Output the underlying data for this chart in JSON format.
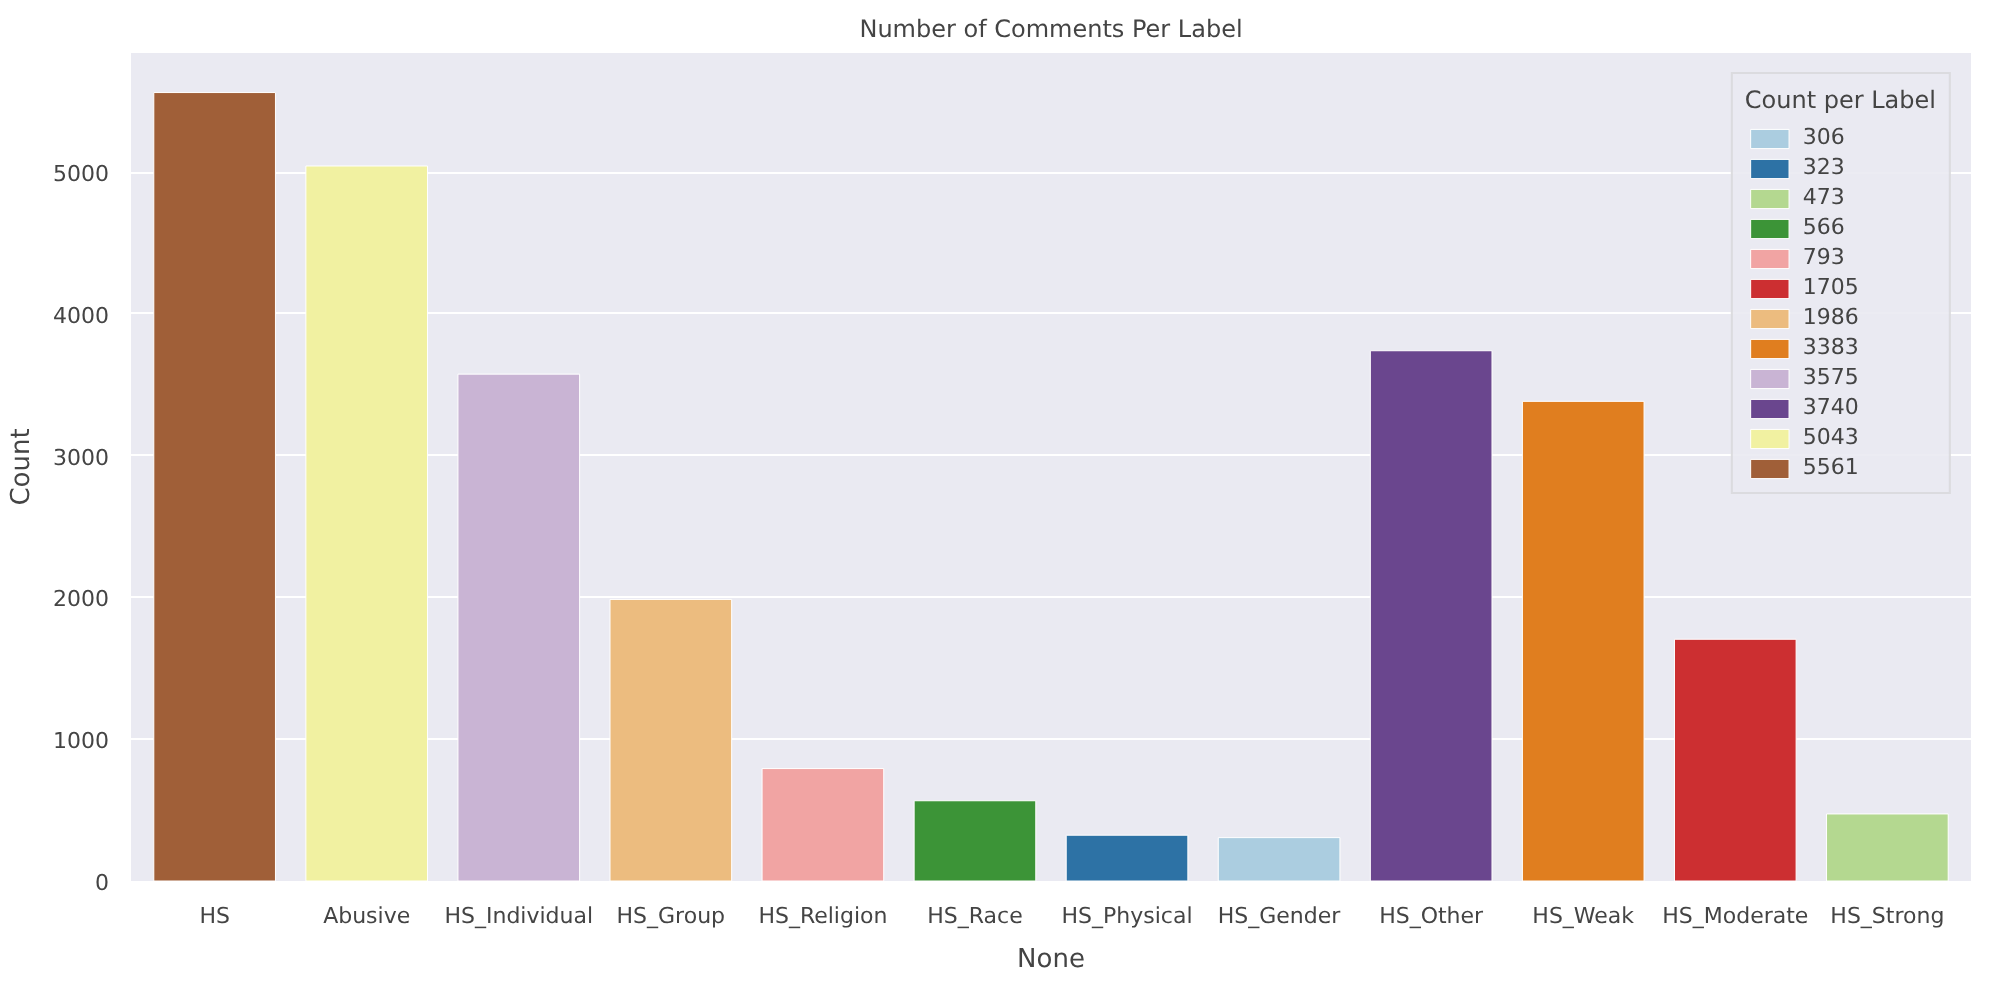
{
  "chart_data": {
    "type": "bar",
    "title": "Number of Comments Per Label",
    "xlabel": "None",
    "ylabel": "Count",
    "legend_title": "Count per Label",
    "legend": "top right",
    "grid": "y",
    "categories": [
      "HS",
      "Abusive",
      "HS_Individual",
      "HS_Group",
      "HS_Religion",
      "HS_Race",
      "HS_Physical",
      "HS_Gender",
      "HS_Other",
      "HS_Weak",
      "HS_Moderate",
      "HS_Strong"
    ],
    "ylim": [
      0,
      5840
    ],
    "yticks": [
      0,
      1000,
      2000,
      3000,
      4000,
      5000
    ],
    "series": [
      {
        "name": "306",
        "color": "#abcde0",
        "values": [
          null,
          null,
          null,
          null,
          null,
          null,
          null,
          306,
          null,
          null,
          null,
          null
        ]
      },
      {
        "name": "323",
        "color": "#2d72a5",
        "values": [
          null,
          null,
          null,
          null,
          null,
          null,
          323,
          null,
          null,
          null,
          null,
          null
        ]
      },
      {
        "name": "473",
        "color": "#b4d890",
        "values": [
          null,
          null,
          null,
          null,
          null,
          null,
          null,
          null,
          null,
          null,
          null,
          473
        ]
      },
      {
        "name": "566",
        "color": "#3c9437",
        "values": [
          null,
          null,
          null,
          null,
          null,
          566,
          null,
          null,
          null,
          null,
          null,
          null
        ]
      },
      {
        "name": "793",
        "color": "#f1a4a3",
        "values": [
          null,
          null,
          null,
          null,
          793,
          null,
          null,
          null,
          null,
          null,
          null,
          null
        ]
      },
      {
        "name": "1705",
        "color": "#cc2f31",
        "values": [
          null,
          null,
          null,
          null,
          null,
          null,
          null,
          null,
          null,
          null,
          1705,
          null
        ]
      },
      {
        "name": "1986",
        "color": "#ecbc7f",
        "values": [
          null,
          null,
          null,
          1986,
          null,
          null,
          null,
          null,
          null,
          null,
          null,
          null
        ]
      },
      {
        "name": "3383",
        "color": "#e07e1f",
        "values": [
          null,
          null,
          null,
          null,
          null,
          null,
          null,
          null,
          null,
          3383,
          null,
          null
        ]
      },
      {
        "name": "3575",
        "color": "#c9b4d4",
        "values": [
          null,
          null,
          3575,
          null,
          null,
          null,
          null,
          null,
          null,
          null,
          null,
          null
        ]
      },
      {
        "name": "3740",
        "color": "#6a468e",
        "values": [
          null,
          null,
          null,
          null,
          null,
          null,
          null,
          null,
          3740,
          null,
          null,
          null
        ]
      },
      {
        "name": "5043",
        "color": "#f1f1a1",
        "values": [
          null,
          5043,
          null,
          null,
          null,
          null,
          null,
          null,
          null,
          null,
          null,
          null
        ]
      },
      {
        "name": "5561",
        "color": "#a05f38",
        "values": [
          5561,
          null,
          null,
          null,
          null,
          null,
          null,
          null,
          null,
          null,
          null,
          null
        ]
      }
    ]
  }
}
